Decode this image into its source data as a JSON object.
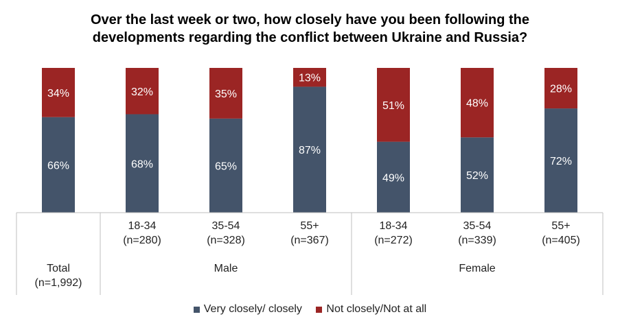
{
  "chart_data": {
    "type": "bar",
    "stacked": true,
    "title_lines": [
      "Over the last week or two, how closely have you been following the",
      "developments regarding the conflict between Ukraine and Russia?"
    ],
    "categories": [
      [
        "",
        "Total",
        "(n=1,992)"
      ],
      [
        "18-34",
        "(n=280)"
      ],
      [
        "35-54",
        "(n=328)"
      ],
      [
        "55+",
        "(n=367)"
      ],
      [
        "18-34",
        "(n=272)"
      ],
      [
        "35-54",
        "(n=339)"
      ],
      [
        "55+",
        "(n=405)"
      ]
    ],
    "groups": [
      {
        "label": "Male",
        "start": 1,
        "end": 3
      },
      {
        "label": "Female",
        "start": 4,
        "end": 6
      }
    ],
    "series": [
      {
        "name": "Very closely/ closely",
        "color": "#44546A",
        "values": [
          66,
          68,
          65,
          87,
          49,
          52,
          72
        ]
      },
      {
        "name": "Not closely/Not at all",
        "color": "#9B2524",
        "values": [
          34,
          32,
          35,
          13,
          51,
          48,
          28
        ]
      }
    ],
    "value_suffix": "%",
    "ylim": [
      0,
      100
    ],
    "legend_position": "bottom",
    "grid": false
  }
}
